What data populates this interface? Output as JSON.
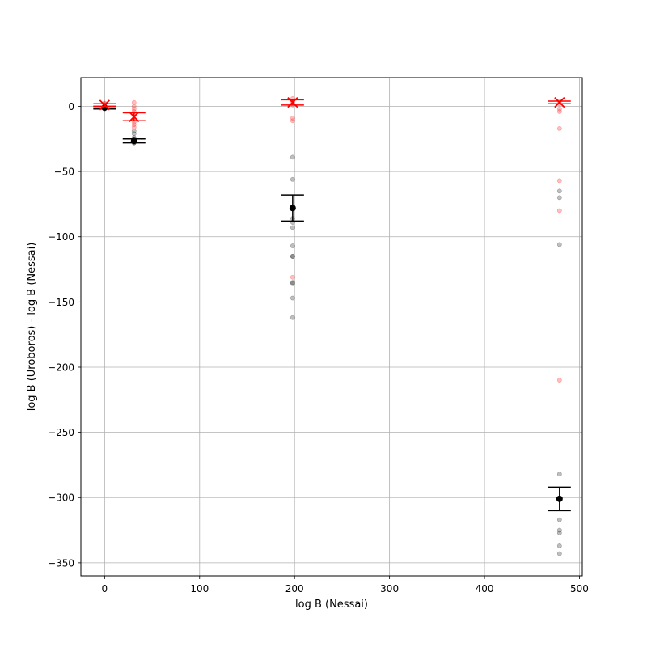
{
  "chart_data": {
    "type": "scatter",
    "title": "",
    "xlabel": "log B (Nessai)",
    "ylabel": "log B (Uroboros) - log B (Nessai)",
    "xlim": [
      -25,
      503
    ],
    "ylim": [
      -360,
      22
    ],
    "xticks": [
      0,
      100,
      200,
      300,
      400,
      500
    ],
    "xtick_labels": [
      "0",
      "100",
      "200",
      "300",
      "400",
      "500"
    ],
    "yticks": [
      0,
      -50,
      -100,
      -150,
      -200,
      -250,
      -300,
      -350
    ],
    "ytick_labels": [
      "0",
      "−50",
      "−100",
      "−150",
      "−200",
      "−250",
      "−300",
      "−350"
    ],
    "grid": true,
    "legend": "none",
    "colors": {
      "black_series": "#000000",
      "red_series": "#ff0000",
      "grid": "#b0b0b0"
    },
    "series": [
      {
        "color": "#000000",
        "marker": "point-with-errorbar",
        "points": [
          {
            "x": 0,
            "y": -1,
            "ylo": -2,
            "yhi": 0
          },
          {
            "x": 31,
            "y": -26.5,
            "ylo": -28,
            "yhi": -25
          },
          {
            "x": 198,
            "y": -78,
            "ylo": -88,
            "yhi": -68
          },
          {
            "x": 479,
            "y": -301,
            "ylo": -310,
            "yhi": -292
          }
        ],
        "samples": [
          {
            "x": 0,
            "ys": [
              -1,
              -2,
              -0.5,
              -1.5,
              0
            ]
          },
          {
            "x": 31,
            "ys": [
              -19,
              -21,
              -24,
              -26,
              -27,
              -28,
              -28
            ]
          },
          {
            "x": 198,
            "ys": [
              -39,
              -56,
              -86,
              -89,
              -93,
              -107,
              -115,
              -115,
              -135,
              -136,
              -147,
              -162
            ]
          },
          {
            "x": 479,
            "ys": [
              -65,
              -70,
              -106,
              -282,
              -317,
              -325,
              -327,
              -337,
              -343
            ]
          }
        ]
      },
      {
        "color": "#ff0000",
        "marker": "x-with-errorbar",
        "points": [
          {
            "x": 0,
            "y": 1,
            "ylo": 0,
            "yhi": 2
          },
          {
            "x": 31,
            "y": -8,
            "ylo": -11,
            "yhi": -5
          },
          {
            "x": 198,
            "y": 3,
            "ylo": 1,
            "yhi": 5
          },
          {
            "x": 479,
            "y": 3,
            "ylo": 2,
            "yhi": 4
          }
        ],
        "samples": [
          {
            "x": 0,
            "ys": [
              2,
              1,
              0,
              -1,
              2.5
            ]
          },
          {
            "x": 31,
            "ys": [
              3,
              0,
              -2,
              -4,
              -7,
              -10,
              -12,
              -14,
              -16
            ]
          },
          {
            "x": 198,
            "ys": [
              6,
              3,
              1,
              -9,
              -11,
              -131
            ]
          },
          {
            "x": 479,
            "ys": [
              4,
              2,
              -2,
              -4,
              -17,
              -57,
              -80,
              -210
            ]
          }
        ]
      }
    ]
  }
}
